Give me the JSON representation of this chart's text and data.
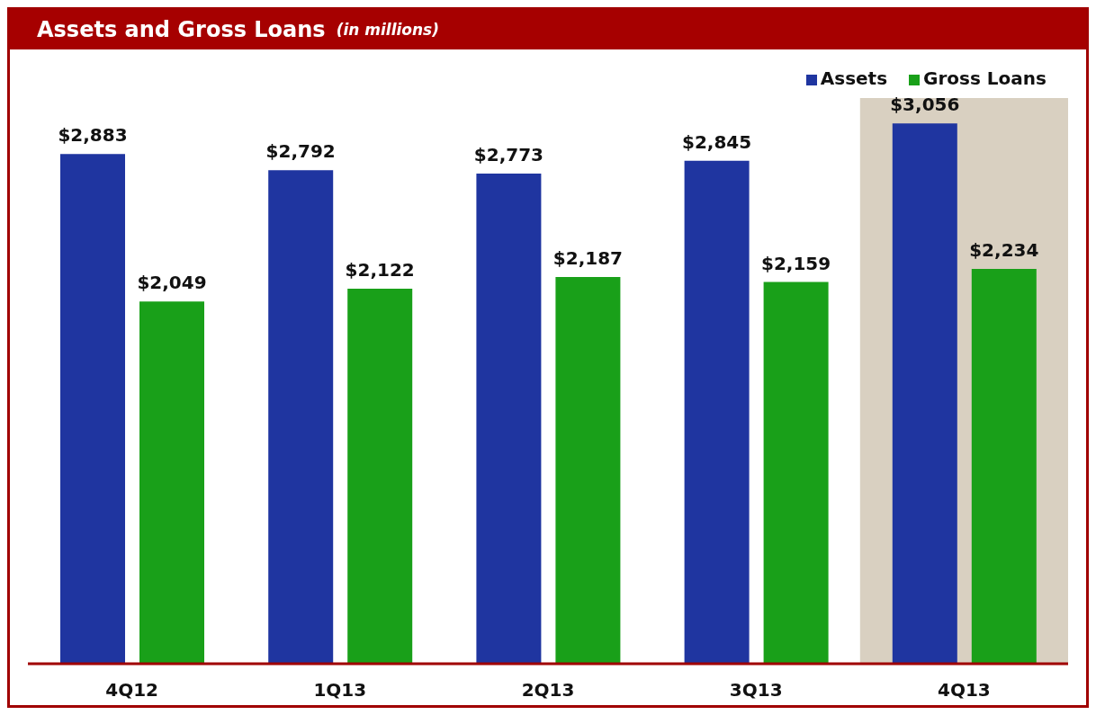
{
  "chart_data": {
    "type": "bar",
    "title": "Assets and Gross Loans",
    "subtitle": "(in millions)",
    "categories": [
      "4Q12",
      "1Q13",
      "2Q13",
      "3Q13",
      "4Q13"
    ],
    "series": [
      {
        "name": "Assets",
        "color": "#1f35a0",
        "values": [
          2883,
          2792,
          2773,
          2845,
          3056
        ],
        "value_labels": [
          "$2,883",
          "$2,792",
          "$2,773",
          "$2,845",
          "$3,056"
        ]
      },
      {
        "name": "Gross Loans",
        "color": "#19a019",
        "values": [
          2049,
          2122,
          2187,
          2159,
          2234
        ],
        "value_labels": [
          "$2,049",
          "$2,122",
          "$2,187",
          "$2,159",
          "$2,234"
        ]
      }
    ],
    "bands": [
      {
        "axis": "x",
        "from": "4Q13",
        "to": "4Q13",
        "color": "#d9d0c1"
      }
    ],
    "grid": false,
    "legend": "top right"
  }
}
